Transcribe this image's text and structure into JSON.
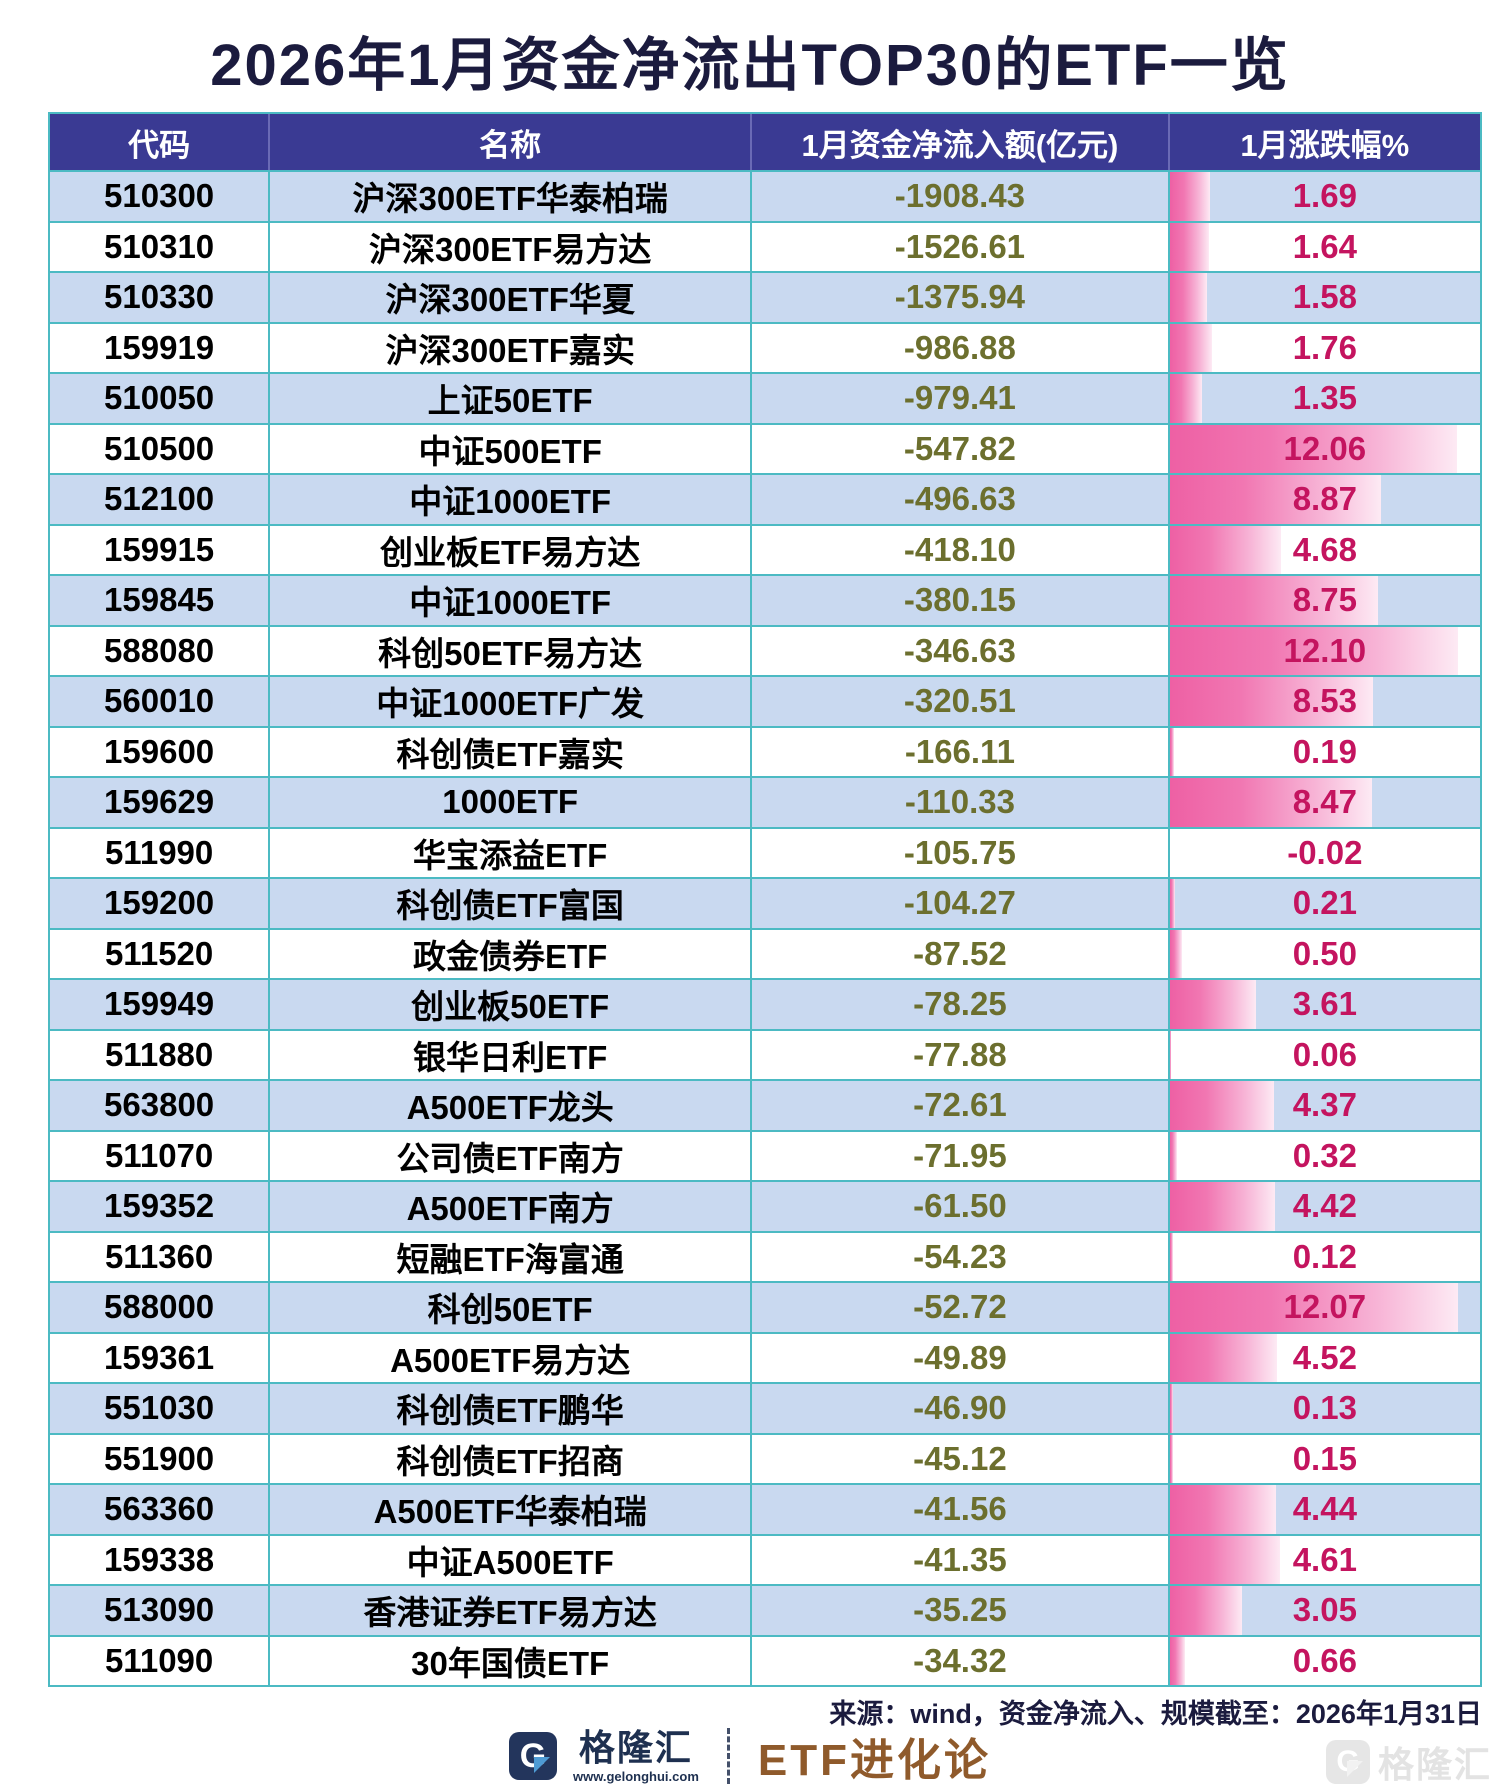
{
  "title": "2026年1月资金净流出TOP30的ETF一览",
  "chart_data": {
    "type": "table",
    "title": "2026年1月资金净流出TOP30的ETF一览",
    "columns": [
      "代码",
      "名称",
      "1月资金净流入额(亿元)",
      "1月涨跌幅%"
    ],
    "max_change": 12.1,
    "bar_fill_ratio": 0.93,
    "rows": [
      [
        "510300",
        "沪深300ETF华泰柏瑞",
        "-1908.43",
        "1.69"
      ],
      [
        "510310",
        "沪深300ETF易方达",
        "-1526.61",
        "1.64"
      ],
      [
        "510330",
        "沪深300ETF华夏",
        "-1375.94",
        "1.58"
      ],
      [
        "159919",
        "沪深300ETF嘉实",
        "-986.88",
        "1.76"
      ],
      [
        "510050",
        "上证50ETF",
        "-979.41",
        "1.35"
      ],
      [
        "510500",
        "中证500ETF",
        "-547.82",
        "12.06"
      ],
      [
        "512100",
        "中证1000ETF",
        "-496.63",
        "8.87"
      ],
      [
        "159915",
        "创业板ETF易方达",
        "-418.10",
        "4.68"
      ],
      [
        "159845",
        "中证1000ETF",
        "-380.15",
        "8.75"
      ],
      [
        "588080",
        "科创50ETF易方达",
        "-346.63",
        "12.10"
      ],
      [
        "560010",
        "中证1000ETF广发",
        "-320.51",
        "8.53"
      ],
      [
        "159600",
        "科创债ETF嘉实",
        "-166.11",
        "0.19"
      ],
      [
        "159629",
        "1000ETF",
        "-110.33",
        "8.47"
      ],
      [
        "511990",
        "华宝添益ETF",
        "-105.75",
        "-0.02"
      ],
      [
        "159200",
        "科创债ETF富国",
        "-104.27",
        "0.21"
      ],
      [
        "511520",
        "政金债券ETF",
        "-87.52",
        "0.50"
      ],
      [
        "159949",
        "创业板50ETF",
        "-78.25",
        "3.61"
      ],
      [
        "511880",
        "银华日利ETF",
        "-77.88",
        "0.06"
      ],
      [
        "563800",
        "A500ETF龙头",
        "-72.61",
        "4.37"
      ],
      [
        "511070",
        "公司债ETF南方",
        "-71.95",
        "0.32"
      ],
      [
        "159352",
        "A500ETF南方",
        "-61.50",
        "4.42"
      ],
      [
        "511360",
        "短融ETF海富通",
        "-54.23",
        "0.12"
      ],
      [
        "588000",
        "科创50ETF",
        "-52.72",
        "12.07"
      ],
      [
        "159361",
        "A500ETF易方达",
        "-49.89",
        "4.52"
      ],
      [
        "551030",
        "科创债ETF鹏华",
        "-46.90",
        "0.13"
      ],
      [
        "551900",
        "科创债ETF招商",
        "-45.12",
        "0.15"
      ],
      [
        "563360",
        "A500ETF华泰柏瑞",
        "-41.56",
        "4.44"
      ],
      [
        "159338",
        "中证A500ETF",
        "-41.35",
        "4.61"
      ],
      [
        "513090",
        "香港证券ETF易方达",
        "-35.25",
        "3.05"
      ],
      [
        "511090",
        "30年国债ETF",
        "-34.32",
        "0.66"
      ]
    ]
  },
  "footer": {
    "source": "来源：wind，资金净流入、规模截至：2026年1月31日",
    "brand_initial": "G",
    "brand_name": "格隆汇",
    "brand_url": "www.gelonghui.com",
    "series_name": "ETF进化论",
    "watermark_initial": "G",
    "watermark_text": "格隆汇"
  },
  "colors": {
    "header_bg": "#3a3a93",
    "header_text": "#ffffff",
    "row_alt_bg": "#c9d9f0",
    "row_bg": "#ffffff",
    "border": "#4cbac3",
    "title_text": "#1b1b3e",
    "flow_text": "#6c6f2e",
    "change_text": "#c4145f",
    "bar_start": "#ee60a4",
    "bar_end": "#fdeaf4",
    "series_text": "#8f5a2b"
  }
}
